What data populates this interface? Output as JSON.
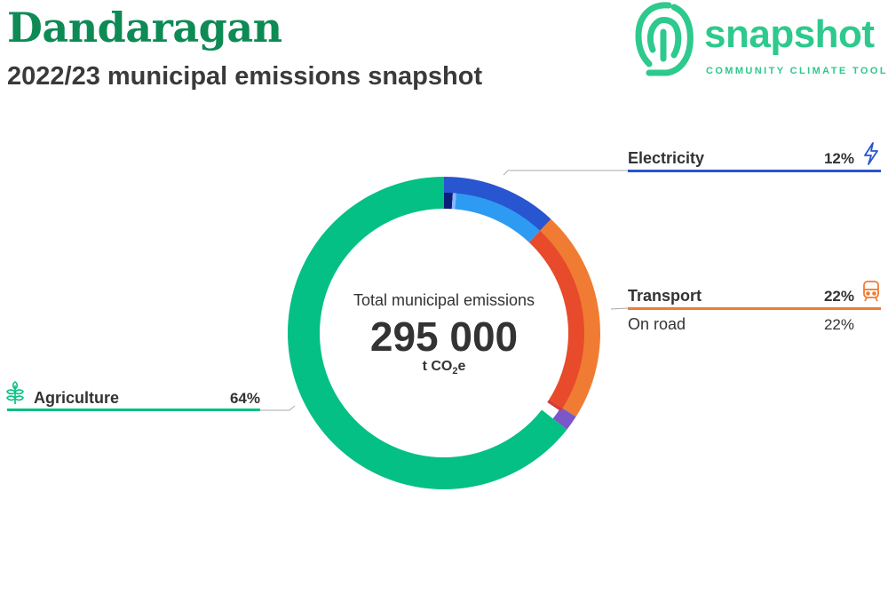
{
  "header": {
    "title": "Dandaragan",
    "subtitle": "2022/23 municipal emissions snapshot"
  },
  "logo": {
    "word": "snapshot",
    "tagline": "COMMUNITY CLIMATE TOOL",
    "icon": "fingerprint-icon"
  },
  "center": {
    "label": "Total municipal emissions",
    "value": "295 000",
    "unit_prefix": "t CO",
    "unit_sub": "2",
    "unit_suffix": "e"
  },
  "colors": {
    "electricity": "#2855d0",
    "transport": "#f07c33",
    "agriculture": "#04c084",
    "electricity_inner_dark": "#0a1f7a",
    "electricity_inner_light": "#8ab4f8",
    "electricity_inner_mid": "#2e9bf2",
    "transport_inner": "#e84a2c",
    "other_purple": "#7b58c9",
    "other_red": "#d63a3a"
  },
  "legend": {
    "electricity": {
      "label": "Electricity",
      "pct": "12%",
      "icon": "lightning-icon"
    },
    "transport": {
      "label": "Transport",
      "pct": "22%",
      "icon": "train-icon",
      "sub_label": "On road",
      "sub_pct": "22%"
    },
    "agriculture": {
      "label": "Agriculture",
      "pct": "64%",
      "icon": "wheat-icon"
    }
  },
  "chart_data": {
    "type": "pie",
    "title": "Total municipal emissions",
    "total": 295000,
    "unit": "t CO2e",
    "series": [
      {
        "name": "Electricity",
        "value": 12,
        "color": "#2855d0",
        "subsectors": [
          {
            "value": 1.0,
            "color": "#0a1f7a"
          },
          {
            "value": 0.4,
            "color": "#8ab4f8"
          },
          {
            "value": 10.6,
            "color": "#2e9bf2"
          }
        ]
      },
      {
        "name": "Transport",
        "value": 22,
        "color": "#f07c33",
        "subsectors": [
          {
            "name": "On road",
            "value": 22,
            "color": "#e84a2c"
          }
        ]
      },
      {
        "name": "",
        "value": 1.6,
        "color": "#7b58c9",
        "subsectors": [
          {
            "value": 0.4,
            "color": "#d63a3a"
          }
        ]
      },
      {
        "name": "Agriculture",
        "value": 64.4,
        "color": "#04c084",
        "subsectors": [
          {
            "value": 64.4,
            "color": "#04c084"
          }
        ]
      }
    ]
  }
}
